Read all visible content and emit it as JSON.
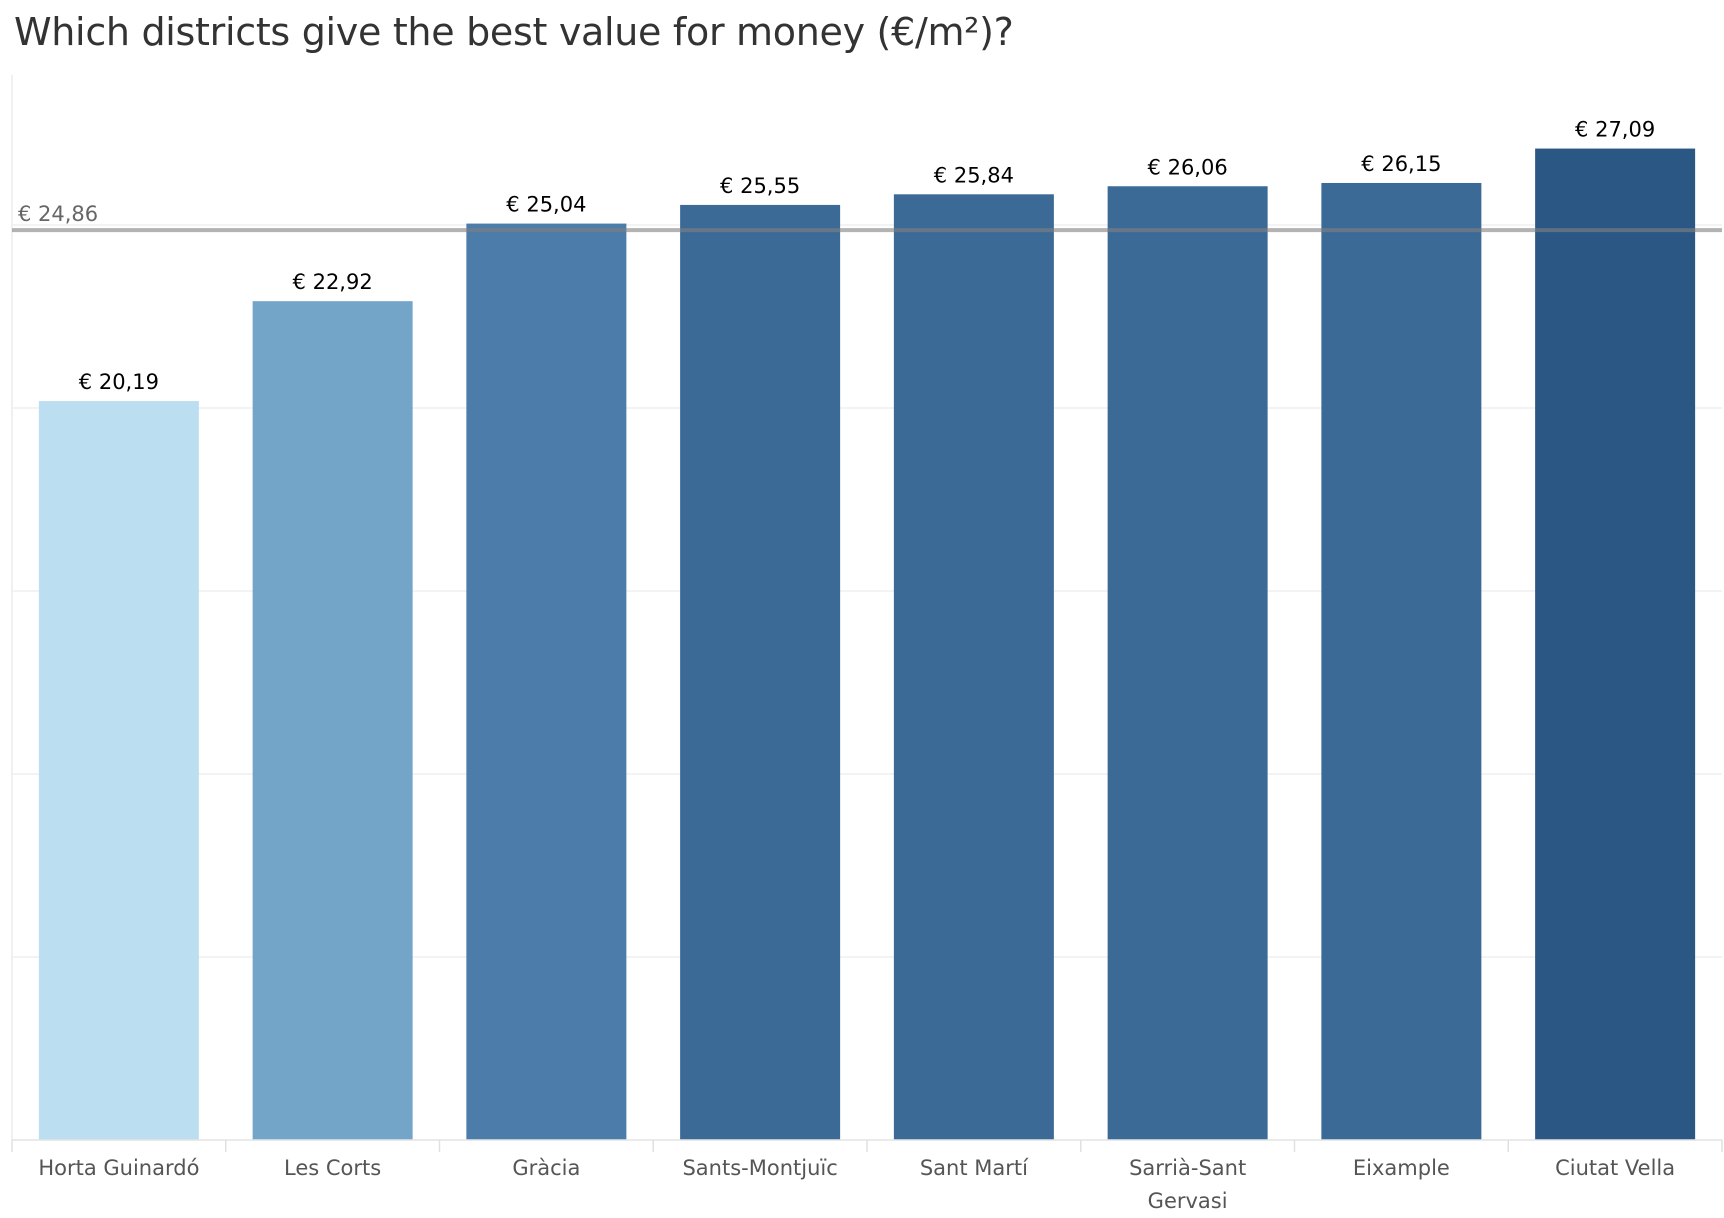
{
  "chart_data": {
    "type": "bar",
    "title": "Which districts give the best value for money (€/m²)?",
    "xlabel": "",
    "ylabel": "",
    "categories": [
      "Horta Guinardó",
      "Les Corts",
      "Gràcia",
      "Sants-Montjuïc",
      "Sant Martí",
      "Sarrià-Sant Gervasi",
      "Eixample",
      "Ciutat Vella"
    ],
    "category_lines": [
      [
        "Horta Guinardó"
      ],
      [
        "Les Corts"
      ],
      [
        "Gràcia"
      ],
      [
        "Sants-Montjuïc"
      ],
      [
        "Sant Martí"
      ],
      [
        "Sarrià-Sant",
        "Gervasi"
      ],
      [
        "Eixample"
      ],
      [
        "Ciutat Vella"
      ]
    ],
    "values": [
      20.19,
      22.92,
      25.04,
      25.55,
      25.84,
      26.06,
      26.15,
      27.09
    ],
    "value_labels": [
      "€ 20,19",
      "€ 22,92",
      "€ 25,04",
      "€ 25,55",
      "€ 25,84",
      "€ 26,06",
      "€ 26,15",
      "€ 27,09"
    ],
    "colors": [
      "#bbdef1",
      "#73a5c9",
      "#4b7caa",
      "#3c6a96",
      "#3c6a96",
      "#3c6a96",
      "#3c6a96",
      "#2b5785"
    ],
    "reference_line": {
      "value": 24.86,
      "label": "€ 24,86",
      "color": "#a0a0a0"
    },
    "ylim": [
      0,
      29.1
    ],
    "grid": "horizontal",
    "legend": "none"
  }
}
